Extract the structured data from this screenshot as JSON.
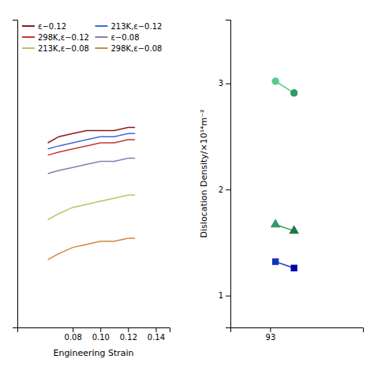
{
  "chart_data": [
    {
      "type": "line",
      "xlabel": "Engineering Strain",
      "x": [
        0.062,
        0.07,
        0.08,
        0.09,
        0.1,
        0.11,
        0.12,
        0.125
      ],
      "series": [
        {
          "name": "ε−0.12",
          "color": "#8B1A1A",
          "values": [
            300,
            302,
            303,
            304,
            304,
            304,
            305,
            305
          ]
        },
        {
          "name": "213K,ε−0.12",
          "color": "#4169E1",
          "values": [
            298,
            299,
            300,
            301,
            302,
            302,
            303,
            303
          ]
        },
        {
          "name": "298K,ε−0.12",
          "color": "#CC3333",
          "values": [
            296,
            297,
            298,
            299,
            300,
            300,
            301,
            301
          ]
        },
        {
          "name": "ε−0.08",
          "color": "#8B7BB5",
          "values": [
            290,
            291,
            292,
            293,
            294,
            294,
            295,
            295
          ]
        },
        {
          "name": "213K,ε−0.08",
          "color": "#ADCC66",
          "values": [
            275,
            277,
            279,
            280,
            281,
            282,
            283,
            283
          ]
        },
        {
          "name": "298K,ε−0.08",
          "color": "#CC8844",
          "values": [
            262,
            264,
            266,
            267,
            268,
            268,
            269,
            269
          ]
        }
      ],
      "xlim": [
        0.04,
        0.15
      ],
      "ylim": [
        240,
        340
      ],
      "xticks": [
        0.08,
        {
          "value": 0.1,
          "label": "0.10"
        },
        0.12,
        0.14
      ],
      "tick_labels": "x",
      "legend": "top-left"
    },
    {
      "type": "scatter",
      "ylabel": "Dislocation Density/×10¹⁴m⁻²",
      "series": [
        {
          "x": [
            93.2,
            93.9
          ],
          "values": [
            3.02,
            2.91
          ],
          "marker": "circle",
          "line_style": "solid",
          "color": "#55CC88",
          "colors": [
            "#55CC88",
            "#339966"
          ]
        },
        {
          "x": [
            93.2,
            93.9
          ],
          "values": [
            1.67,
            1.61
          ],
          "marker": "triangle",
          "line_style": "solid",
          "color": "#339966",
          "colors": [
            "#339966",
            "#227744"
          ]
        },
        {
          "x": [
            93.2,
            93.9
          ],
          "values": [
            1.32,
            1.26
          ],
          "marker": "square",
          "line_style": "solid",
          "color": "#1133BB",
          "colors": [
            "#1133BB",
            "#0000AA"
          ]
        }
      ],
      "xlim": [
        91.5,
        96.5
      ],
      "ylim": [
        0.7,
        3.6
      ],
      "xticks": [
        93
      ],
      "yticks": [
        1,
        2,
        3
      ]
    }
  ]
}
